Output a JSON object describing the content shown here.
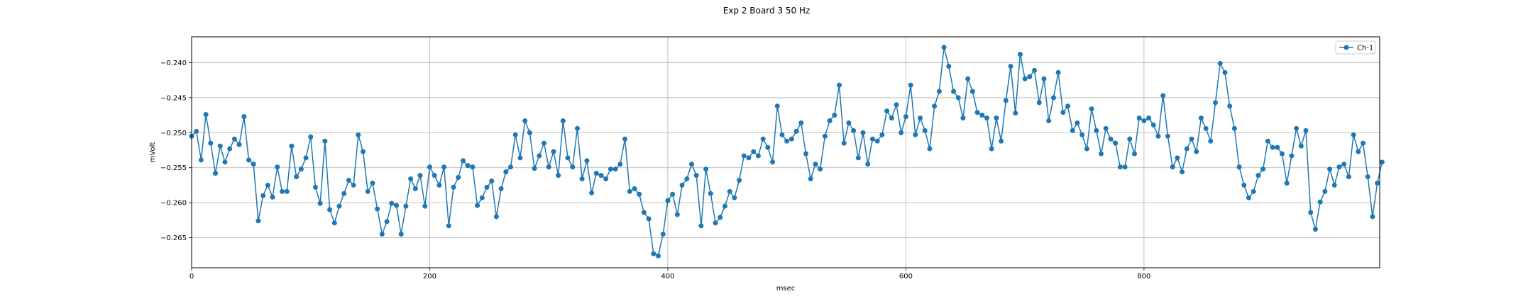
{
  "chart_data": {
    "type": "line",
    "title": "Exp 2 Board 3 50 Hz",
    "xlabel": "msec",
    "ylabel": "mVolt",
    "xlim": [
      0,
      998
    ],
    "ylim": [
      -0.2693,
      -0.2363
    ],
    "xticks": [
      0,
      200,
      400,
      600,
      800
    ],
    "xtick_labels": [
      "0",
      "200",
      "400",
      "600",
      "800"
    ],
    "yticks": [
      -0.265,
      -0.26,
      -0.255,
      -0.25,
      -0.245,
      -0.24
    ],
    "ytick_labels": [
      "−0.265",
      "−0.260",
      "−0.255",
      "−0.250",
      "−0.245",
      "−0.240"
    ],
    "grid": true,
    "legend_position": "top-right",
    "series": [
      {
        "name": "Ch-1",
        "color": "#1f77b4",
        "x_start": 0,
        "x_step": 4,
        "values": [
          -0.2505,
          -0.2498,
          -0.2539,
          -0.2474,
          -0.2515,
          -0.2558,
          -0.2519,
          -0.2542,
          -0.2523,
          -0.2509,
          -0.2517,
          -0.2477,
          -0.2539,
          -0.2545,
          -0.2626,
          -0.259,
          -0.2575,
          -0.2592,
          -0.2549,
          -0.2584,
          -0.2584,
          -0.2519,
          -0.2563,
          -0.2552,
          -0.2536,
          -0.2506,
          -0.2578,
          -0.2601,
          -0.2512,
          -0.261,
          -0.2629,
          -0.2605,
          -0.2587,
          -0.2568,
          -0.2575,
          -0.2503,
          -0.2527,
          -0.2584,
          -0.2572,
          -0.2609,
          -0.2645,
          -0.2627,
          -0.2601,
          -0.2604,
          -0.2645,
          -0.2605,
          -0.2566,
          -0.258,
          -0.2561,
          -0.2605,
          -0.2549,
          -0.2561,
          -0.2575,
          -0.2549,
          -0.2633,
          -0.2578,
          -0.2564,
          -0.254,
          -0.2547,
          -0.2549,
          -0.2604,
          -0.2593,
          -0.2578,
          -0.2569,
          -0.262,
          -0.258,
          -0.2556,
          -0.2549,
          -0.2503,
          -0.2536,
          -0.2483,
          -0.25,
          -0.2551,
          -0.2533,
          -0.2515,
          -0.2549,
          -0.2527,
          -0.2561,
          -0.2483,
          -0.2536,
          -0.2549,
          -0.2494,
          -0.2566,
          -0.254,
          -0.2586,
          -0.2558,
          -0.2561,
          -0.2566,
          -0.2552,
          -0.2552,
          -0.2545,
          -0.2509,
          -0.2584,
          -0.258,
          -0.2588,
          -0.2614,
          -0.2623,
          -0.2673,
          -0.2676,
          -0.2645,
          -0.2597,
          -0.2588,
          -0.2617,
          -0.2575,
          -0.2566,
          -0.2545,
          -0.2561,
          -0.2633,
          -0.2552,
          -0.2587,
          -0.2629,
          -0.2621,
          -0.2605,
          -0.2584,
          -0.2593,
          -0.2568,
          -0.2533,
          -0.2536,
          -0.2527,
          -0.2533,
          -0.2509,
          -0.2521,
          -0.2542,
          -0.2462,
          -0.2503,
          -0.2512,
          -0.2509,
          -0.2498,
          -0.2486,
          -0.253,
          -0.2566,
          -0.2545,
          -0.2552,
          -0.2505,
          -0.2483,
          -0.2475,
          -0.2432,
          -0.2515,
          -0.2486,
          -0.2497,
          -0.2536,
          -0.25,
          -0.2545,
          -0.2509,
          -0.2512,
          -0.2503,
          -0.2469,
          -0.2479,
          -0.246,
          -0.25,
          -0.2477,
          -0.2432,
          -0.2503,
          -0.2479,
          -0.2497,
          -0.2523,
          -0.2462,
          -0.2441,
          -0.2378,
          -0.2405,
          -0.2441,
          -0.245,
          -0.2479,
          -0.2423,
          -0.2441,
          -0.2471,
          -0.2475,
          -0.2479,
          -0.2523,
          -0.2479,
          -0.2512,
          -0.2454,
          -0.2405,
          -0.2472,
          -0.2388,
          -0.2423,
          -0.242,
          -0.2411,
          -0.2457,
          -0.2423,
          -0.2483,
          -0.245,
          -0.2414,
          -0.2471,
          -0.2462,
          -0.2497,
          -0.2486,
          -0.2503,
          -0.2523,
          -0.2466,
          -0.2497,
          -0.253,
          -0.2494,
          -0.2509,
          -0.2515,
          -0.2549,
          -0.2549,
          -0.2509,
          -0.253,
          -0.2479,
          -0.2483,
          -0.2479,
          -0.2489,
          -0.2505,
          -0.2447,
          -0.2505,
          -0.2549,
          -0.2536,
          -0.2556,
          -0.2523,
          -0.2509,
          -0.2527,
          -0.2479,
          -0.2494,
          -0.2512,
          -0.2457,
          -0.2401,
          -0.2414,
          -0.2462,
          -0.2494,
          -0.2549,
          -0.2575,
          -0.2593,
          -0.2584,
          -0.2561,
          -0.2552,
          -0.2512,
          -0.2521,
          -0.2521,
          -0.253,
          -0.2572,
          -0.2533,
          -0.2494,
          -0.2519,
          -0.2497,
          -0.2614,
          -0.2638,
          -0.2599,
          -0.2584,
          -0.2552,
          -0.2575,
          -0.2549,
          -0.2545,
          -0.2563,
          -0.2503,
          -0.2527,
          -0.2515,
          -0.2563,
          -0.262,
          -0.2572,
          -0.2542
        ]
      }
    ]
  }
}
